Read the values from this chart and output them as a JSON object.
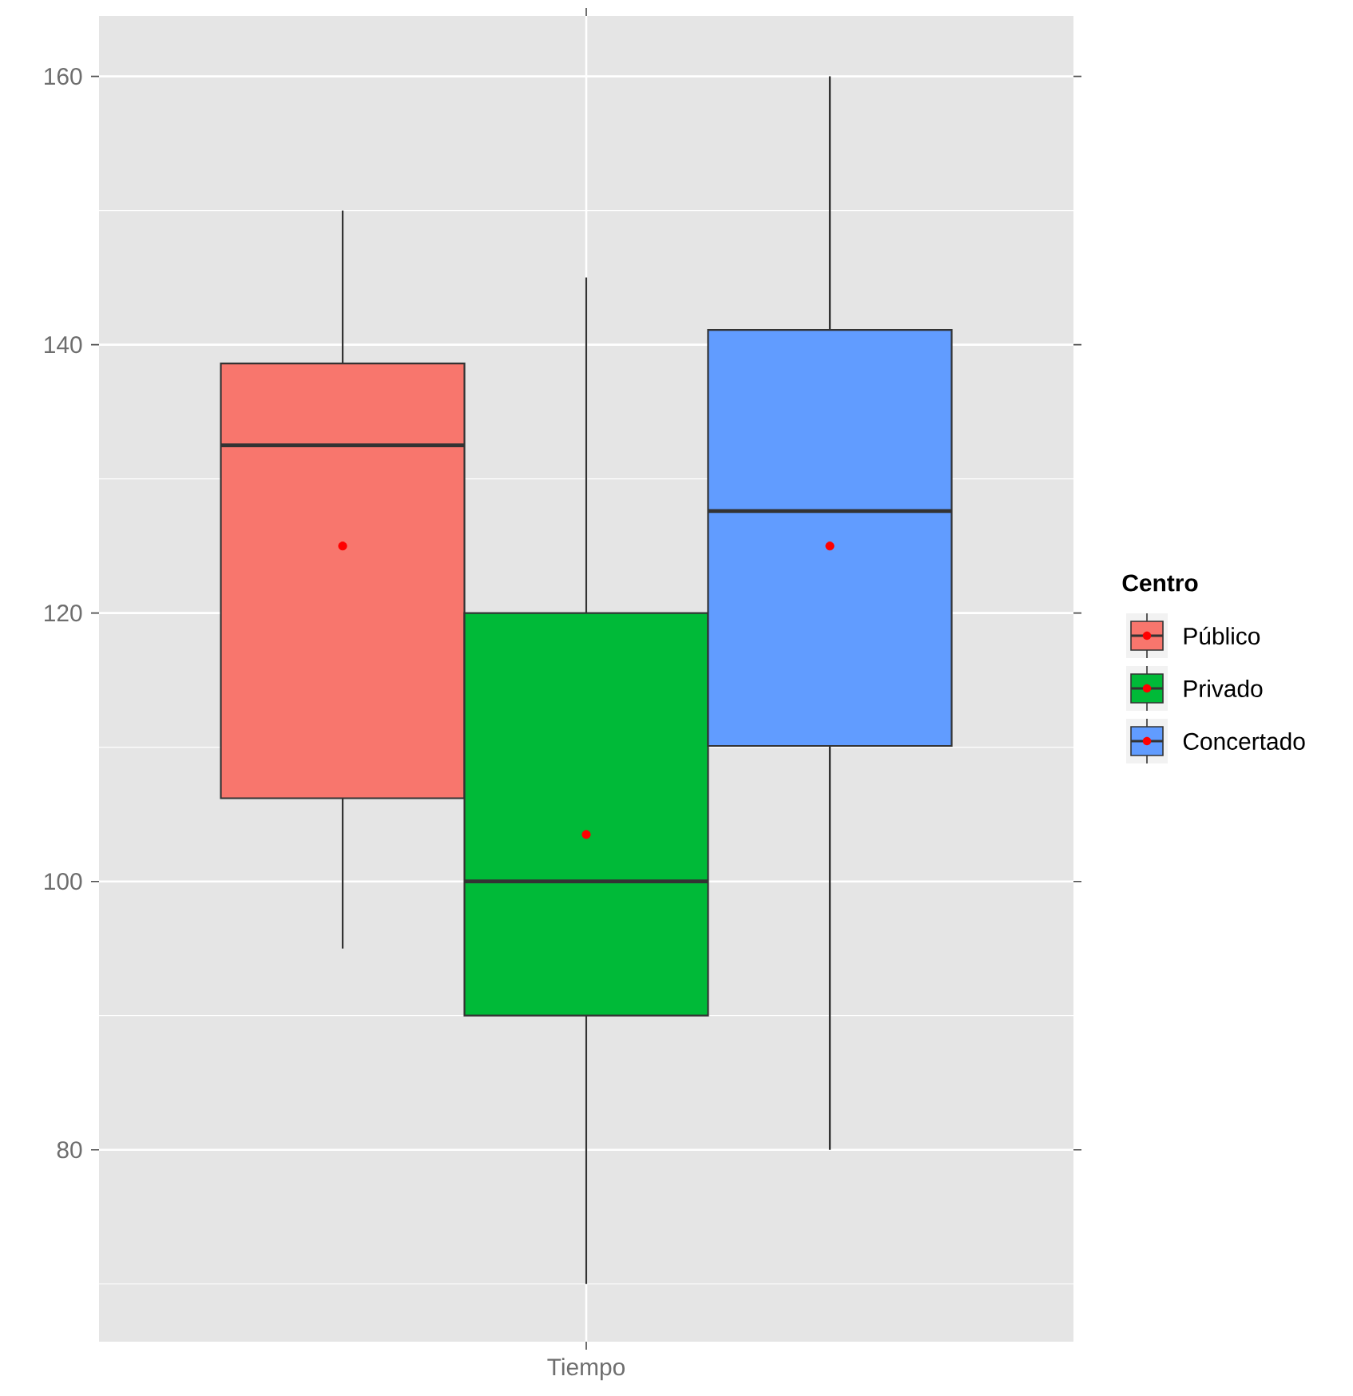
{
  "chart_data": {
    "type": "box",
    "categories": [
      "Tiempo"
    ],
    "legend_title": "Centro",
    "legend": "right",
    "grid": true,
    "ylim": [
      65.7,
      164.5
    ],
    "yticks": [
      {
        "value": 70,
        "label": null
      },
      80,
      {
        "value": 90,
        "label": null
      },
      100,
      {
        "value": 110,
        "label": null
      },
      120,
      {
        "value": 130,
        "label": null
      },
      140,
      {
        "value": 150,
        "label": null
      },
      160
    ],
    "series": [
      {
        "name": "Público",
        "color": "#F8766D",
        "boxes": [
          {
            "low": 95,
            "q1": 106.2,
            "median": 132.5,
            "q3": 138.6,
            "high": 150,
            "mean": 125
          }
        ]
      },
      {
        "name": "Privado",
        "color": "#00BA38",
        "boxes": [
          {
            "low": 70,
            "q1": 90,
            "median": 100,
            "q3": 120,
            "high": 145,
            "mean": 103.5
          }
        ]
      },
      {
        "name": "Concertado",
        "color": "#619CFF",
        "boxes": [
          {
            "low": 80,
            "q1": 110.1,
            "median": 127.6,
            "q3": 141.1,
            "high": 160,
            "mean": 125
          }
        ]
      }
    ]
  }
}
